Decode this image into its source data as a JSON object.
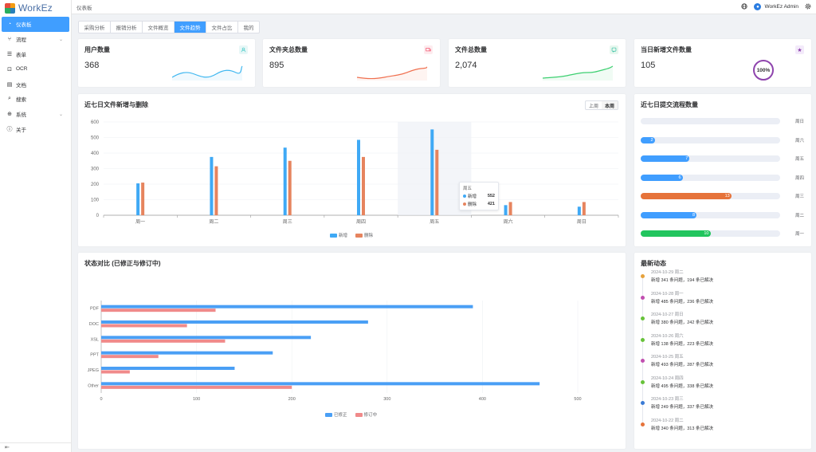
{
  "app": {
    "name": "WorkEz"
  },
  "sidebar": {
    "items": [
      {
        "label": "仪表板",
        "icon": "dashboard-icon",
        "active": true
      },
      {
        "label": "流程",
        "icon": "flow-icon",
        "expandable": true
      },
      {
        "label": "表单",
        "icon": "form-icon"
      },
      {
        "label": "OCR",
        "icon": "ocr-icon"
      },
      {
        "label": "文档",
        "icon": "document-icon"
      },
      {
        "label": "搜索",
        "icon": "search-icon"
      },
      {
        "label": "系统",
        "icon": "system-icon",
        "expandable": true
      },
      {
        "label": "关于",
        "icon": "about-icon"
      }
    ]
  },
  "header": {
    "breadcrumb": "仪表板",
    "user": "WorkEz Admin"
  },
  "tabs": [
    "采购分析",
    "报销分析",
    "文件概览",
    "文件趋势",
    "文件占比",
    "我的"
  ],
  "active_tab": 3,
  "stats": [
    {
      "title": "用户数量",
      "value": "368",
      "icon": "user-icon",
      "color": "#40c9c6"
    },
    {
      "title": "文件夹总数量",
      "value": "895",
      "icon": "folder-icon",
      "color": "#f4516c"
    },
    {
      "title": "文件总数量",
      "value": "2,074",
      "icon": "file-icon",
      "color": "#34bfa3"
    },
    {
      "title": "当日新增文件数量",
      "value": "105",
      "icon": "star-icon",
      "color": "#8e44ad",
      "ring": "100%"
    }
  ],
  "weekly_chart": {
    "title": "近七日文件新增与删除",
    "toggle": [
      "上周",
      "本周"
    ],
    "toggle_active": 1,
    "tooltip": {
      "day": "周五",
      "rows": [
        {
          "name": "新增",
          "value": "552"
        },
        {
          "name": "删除",
          "value": "421"
        }
      ]
    },
    "legend": [
      "新增",
      "删除"
    ]
  },
  "process_chart": {
    "title": "近七日提交流程数量",
    "rows": [
      {
        "day": "周日",
        "value": 0,
        "color": "#409eff"
      },
      {
        "day": "周六",
        "value": 2,
        "color": "#409eff"
      },
      {
        "day": "周五",
        "value": 7,
        "color": "#409eff"
      },
      {
        "day": "周四",
        "value": 6,
        "color": "#409eff"
      },
      {
        "day": "周三",
        "value": 13,
        "color": "#e6733a"
      },
      {
        "day": "周二",
        "value": 8,
        "color": "#409eff"
      },
      {
        "day": "周一",
        "value": 10,
        "color": "#22c55e"
      }
    ],
    "max": 20
  },
  "status_chart": {
    "title": "状态对比 (已修正与修订中)",
    "legend": [
      "已修正",
      "修订中"
    ]
  },
  "activity": {
    "title": "最新动态",
    "items": [
      {
        "date": "2024-10-29 周二",
        "text": "新增 341 条问题，194 条已解决",
        "color": "#e6a23c"
      },
      {
        "date": "2024-10-28 周一",
        "text": "新增 485 条问题，236 条已解决",
        "color": "#c14fb0"
      },
      {
        "date": "2024-10-27 周日",
        "text": "新增 380 条问题，242 条已解决",
        "color": "#67c23a"
      },
      {
        "date": "2024-10-26 周六",
        "text": "新增 138 条问题，223 条已解决",
        "color": "#67c23a"
      },
      {
        "date": "2024-10-25 周五",
        "text": "新增 493 条问题，287 条已解决",
        "color": "#c14fb0"
      },
      {
        "date": "2024-10-24 周四",
        "text": "新增 495 条问题，338 条已解决",
        "color": "#67c23a"
      },
      {
        "date": "2024-10-23 周三",
        "text": "新增 249 条问题，337 条已解决",
        "color": "#3a7bd5"
      },
      {
        "date": "2024-10-22 周二",
        "text": "新增 340 条问题，313 条已解决",
        "color": "#e6733a"
      }
    ]
  },
  "chart_data": [
    {
      "type": "bar",
      "title": "近七日文件新增与删除",
      "categories": [
        "周一",
        "周二",
        "周三",
        "周四",
        "周五",
        "周六",
        "周日"
      ],
      "series": [
        {
          "name": "新增",
          "values": [
            205,
            375,
            435,
            485,
            552,
            65,
            55
          ],
          "color": "#3fa9f5"
        },
        {
          "name": "删除",
          "values": [
            210,
            315,
            350,
            375,
            421,
            85,
            85
          ],
          "color": "#e6845e"
        }
      ],
      "ylim": [
        0,
        600
      ],
      "yticks": [
        "0",
        "100",
        "200",
        "300",
        "400",
        "500",
        "600"
      ],
      "highlight": "周五"
    },
    {
      "type": "bar",
      "orientation": "horizontal",
      "title": "状态对比 (已修正与修订中)",
      "categories": [
        "PDF",
        "DOC",
        "XSL",
        "PPT",
        "JPEG",
        "Other"
      ],
      "series": [
        {
          "name": "已修正",
          "values": [
            390,
            280,
            220,
            180,
            140,
            460
          ],
          "color": "#4a9ff5"
        },
        {
          "name": "修订中",
          "values": [
            120,
            90,
            130,
            60,
            30,
            200
          ],
          "color": "#f08a8a"
        }
      ],
      "xlim": [
        0,
        500
      ],
      "xticks": [
        "0",
        "100",
        "200",
        "300",
        "400",
        "500"
      ]
    }
  ]
}
